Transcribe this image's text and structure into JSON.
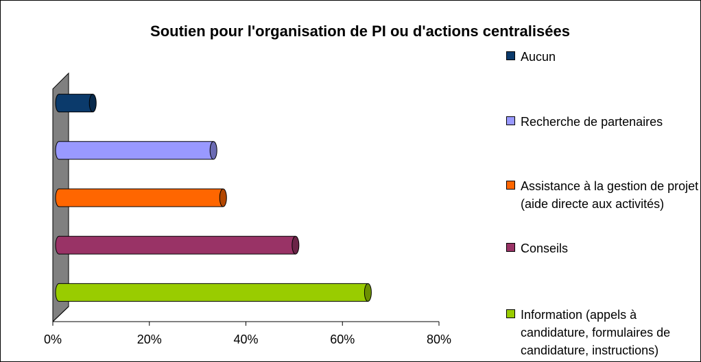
{
  "chart_data": {
    "type": "bar",
    "orientation": "horizontal",
    "title": "Soutien pour l'organisation de PI ou d'actions centralisées",
    "categories": [
      "Aucun",
      "Recherche de partenaires",
      "Assistance à la gestion de projet (aide directe aux activités)",
      "Conseils",
      "Information (appels à candidature, formulaires de candidature, instructions)"
    ],
    "values": [
      7,
      32,
      34,
      49,
      64
    ],
    "colors": [
      "#0b3a6b",
      "#9999ff",
      "#ff6600",
      "#993366",
      "#99cc00"
    ],
    "xlim": [
      0,
      80
    ],
    "xticks": [
      {
        "value": 0,
        "label": "0%"
      },
      {
        "value": 20,
        "label": "20%"
      },
      {
        "value": 40,
        "label": "40%"
      },
      {
        "value": 60,
        "label": "60%"
      },
      {
        "value": 80,
        "label": "80%"
      }
    ],
    "legend": "right"
  }
}
